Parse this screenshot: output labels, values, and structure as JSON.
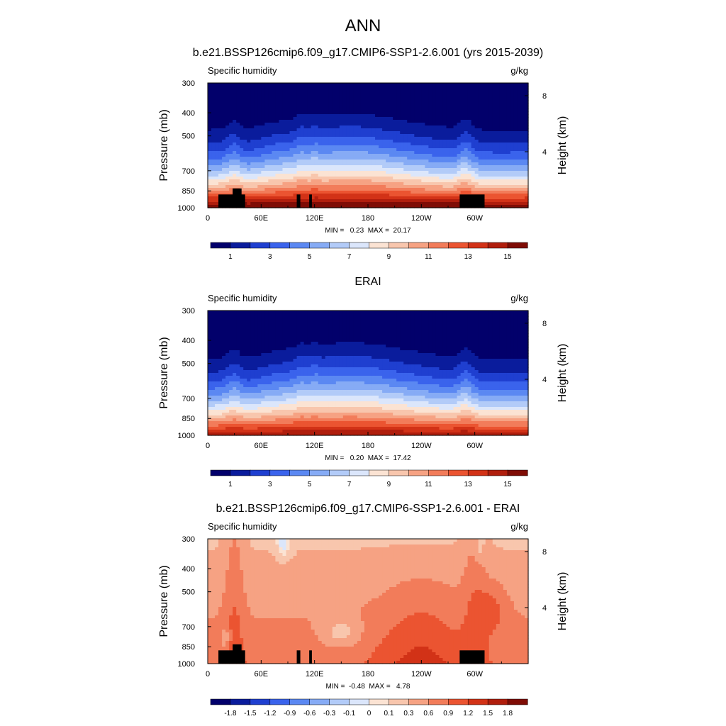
{
  "page_title": "ANN",
  "colorbars": {
    "abs": {
      "colors": [
        "#02006b",
        "#0a1c9c",
        "#1f3fd0",
        "#3a63ec",
        "#5b88f2",
        "#86abf5",
        "#b2cbf8",
        "#dbe6fb",
        "#fbe3d3",
        "#f8c6ad",
        "#f6a283",
        "#f27c5a",
        "#eb5431",
        "#d23217",
        "#b01e0d",
        "#7f0c05"
      ],
      "labels": [
        "1",
        "3",
        "5",
        "7",
        "9",
        "11",
        "13",
        "15"
      ]
    },
    "diff": {
      "colors": [
        "#02006b",
        "#0a1c9c",
        "#1f3fd0",
        "#3a63ec",
        "#5b88f2",
        "#86abf5",
        "#b2cbf8",
        "#dbe6fb",
        "#fbe3d3",
        "#f8c6ad",
        "#f6a283",
        "#f27c5a",
        "#eb5431",
        "#d23217",
        "#b01e0d",
        "#7f0c05"
      ],
      "labels": [
        "-1.8",
        "-1.5",
        "-1.2",
        "-0.9",
        "-0.6",
        "-0.3",
        "-0.1",
        "0",
        "0.1",
        "0.3",
        "0.6",
        "0.9",
        "1.2",
        "1.5",
        "1.8"
      ]
    }
  },
  "chart_data": [
    {
      "type": "heatmap",
      "title": "b.e21.BSSP126cmip6.f09_g17.CMIP6-SSP1-2.6.001 (yrs 2015-2039)",
      "left_label": "Specific humidity",
      "right_label": "g/kg",
      "ylabel": "Pressure (mb)",
      "right_axis_label": "Height (km)",
      "x_ticks": [
        "0",
        "60E",
        "120E",
        "180",
        "120W",
        "60W"
      ],
      "x_tick_values": [
        0,
        60,
        120,
        180,
        240,
        300
      ],
      "xlim": [
        0,
        360
      ],
      "y_ticks": [
        "300",
        "400",
        "500",
        "700",
        "850",
        "1000"
      ],
      "y_tick_values": [
        300,
        400,
        500,
        700,
        850,
        1000
      ],
      "ylim": [
        300,
        1000
      ],
      "right_ticks": [
        "8",
        "4"
      ],
      "right_tick_values": [
        8,
        4
      ],
      "stats": "MIN =   0.23  MAX =  20.17",
      "colorbar": "abs",
      "mode": "abs",
      "amp": 1.0,
      "masked": true
    },
    {
      "type": "heatmap",
      "title": "ERAI",
      "left_label": "Specific humidity",
      "right_label": "g/kg",
      "ylabel": "Pressure (mb)",
      "right_axis_label": "Height (km)",
      "x_ticks": [
        "0",
        "60E",
        "120E",
        "180",
        "120W",
        "60W"
      ],
      "x_tick_values": [
        0,
        60,
        120,
        180,
        240,
        300
      ],
      "xlim": [
        0,
        360
      ],
      "y_ticks": [
        "300",
        "400",
        "500",
        "700",
        "850",
        "1000"
      ],
      "y_tick_values": [
        300,
        400,
        500,
        700,
        850,
        1000
      ],
      "ylim": [
        300,
        1000
      ],
      "right_ticks": [
        "8",
        "4"
      ],
      "right_tick_values": [
        8,
        4
      ],
      "stats": "MIN =   0.20  MAX =  17.42",
      "colorbar": "abs",
      "mode": "abs",
      "amp": 0.92,
      "masked": false
    },
    {
      "type": "heatmap",
      "title": "b.e21.BSSP126cmip6.f09_g17.CMIP6-SSP1-2.6.001 - ERAI",
      "left_label": "Specific humidity",
      "right_label": "g/kg",
      "ylabel": "Pressure (mb)",
      "right_axis_label": "Height (km)",
      "x_ticks": [
        "0",
        "60E",
        "120E",
        "180",
        "120W",
        "60W"
      ],
      "x_tick_values": [
        0,
        60,
        120,
        180,
        240,
        300
      ],
      "xlim": [
        0,
        360
      ],
      "y_ticks": [
        "300",
        "400",
        "500",
        "700",
        "850",
        "1000"
      ],
      "y_tick_values": [
        300,
        400,
        500,
        700,
        850,
        1000
      ],
      "ylim": [
        300,
        1000
      ],
      "right_ticks": [
        "8",
        "4"
      ],
      "right_tick_values": [
        8,
        4
      ],
      "stats": "MIN =  -0.48  MAX =   4.78",
      "colorbar": "diff",
      "mode": "diff",
      "amp": 1.0,
      "masked": true
    }
  ]
}
